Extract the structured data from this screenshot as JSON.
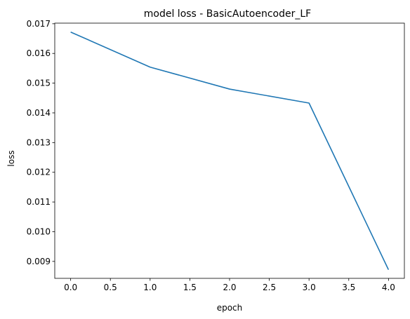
{
  "chart_data": {
    "type": "line",
    "title": "model loss - BasicAutoencoder_LF",
    "xlabel": "epoch",
    "ylabel": "loss",
    "xlim": [
      -0.2,
      4.2
    ],
    "ylim": [
      0.00843,
      0.01702
    ],
    "xticks": [
      "0.0",
      "0.5",
      "1.0",
      "1.5",
      "2.0",
      "2.5",
      "3.0",
      "3.5",
      "4.0"
    ],
    "yticks": [
      "0.009",
      "0.010",
      "0.011",
      "0.012",
      "0.013",
      "0.014",
      "0.015",
      "0.016",
      "0.017"
    ],
    "grid": false,
    "series": [
      {
        "x": [
          0,
          1,
          2,
          3,
          4
        ],
        "values": [
          0.01672,
          0.01554,
          0.0148,
          0.01433,
          0.00872
        ],
        "color": "#1f77b4"
      }
    ]
  }
}
